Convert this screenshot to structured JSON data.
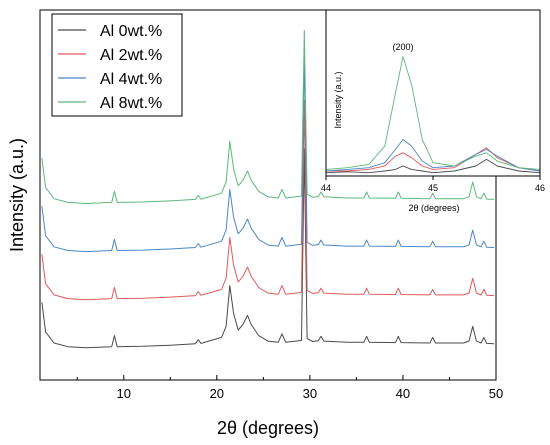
{
  "chart_data": [
    {
      "type": "line",
      "xlabel": "2θ (degrees)",
      "ylabel": "Intensity (a.u.)",
      "xlim": [
        1,
        50
      ],
      "ylim": [
        0,
        100
      ],
      "xticks": [
        10,
        20,
        30,
        40,
        50
      ],
      "grid": false,
      "legend_position": "top-left",
      "series": [
        {
          "name": "Al 0wt.%",
          "color": "#4a4a4a",
          "baseline": 9,
          "x": [
            1.2,
            1.6,
            2.5,
            4,
            6,
            8.7,
            9,
            9.3,
            12,
            15,
            17.7,
            18,
            18.3,
            20.5,
            21.0,
            21.4,
            21.8,
            22.3,
            22.8,
            23.3,
            23.7,
            24.1,
            24.5,
            25.5,
            26.6,
            27.0,
            27.4,
            28.5,
            29.1,
            29.4,
            29.7,
            30.3,
            30.9,
            31.2,
            31.5,
            34,
            35.8,
            36.1,
            36.4,
            39.2,
            39.5,
            39.8,
            42.9,
            43.2,
            43.5,
            46.5,
            47.1,
            47.5,
            47.9,
            48.4,
            48.7,
            49.0,
            49.8
          ],
          "y": [
            21,
            13,
            10,
            9,
            8.7,
            9,
            12,
            9,
            9.1,
            9.4,
            9.8,
            10.9,
            9.9,
            11.5,
            14.5,
            25.5,
            18,
            13.5,
            15,
            17.5,
            15,
            13.5,
            12,
            10.5,
            10.2,
            12.5,
            10.2,
            10.5,
            10.7,
            62.5,
            11.2,
            10.4,
            10.6,
            11.8,
            10.5,
            10.2,
            10.2,
            11.8,
            10.2,
            10.1,
            11.8,
            10.1,
            10,
            11.5,
            10,
            10,
            10.5,
            14.5,
            10.5,
            10,
            11.5,
            9.9,
            9.8
          ]
        },
        {
          "name": "Al 2wt.%",
          "color": "#e05a5a",
          "baseline": 22,
          "x": [
            1.2,
            1.6,
            2.5,
            4,
            6,
            8.7,
            9,
            9.3,
            12,
            15,
            17.7,
            18,
            18.3,
            20.5,
            21.0,
            21.4,
            21.8,
            22.3,
            22.8,
            23.3,
            23.7,
            24.1,
            24.5,
            25.5,
            26.6,
            27.0,
            27.4,
            28.5,
            29.1,
            29.4,
            29.7,
            30.3,
            30.9,
            31.2,
            31.5,
            34,
            35.8,
            36.1,
            36.4,
            39.2,
            39.5,
            39.8,
            42.9,
            43.2,
            43.5,
            46.5,
            47.1,
            47.5,
            47.9,
            48.4,
            48.7,
            49.0,
            49.8
          ],
          "y": [
            34,
            26,
            23,
            22,
            21.7,
            22,
            25,
            22,
            22.1,
            22.4,
            22.8,
            23.9,
            22.9,
            24.5,
            27.5,
            38.5,
            31,
            26.5,
            28,
            30.5,
            28,
            26.5,
            25,
            23.5,
            23.2,
            25.5,
            23.2,
            23.5,
            23.7,
            75.5,
            24.2,
            23.4,
            23.6,
            24.8,
            23.5,
            23.2,
            23.2,
            24.8,
            23.2,
            23.1,
            24.8,
            23.1,
            23,
            24.5,
            23,
            23,
            23.5,
            27.5,
            23.5,
            23,
            24.5,
            22.9,
            22.8
          ]
        },
        {
          "name": "Al 4wt.%",
          "color": "#4a86c8",
          "baseline": 35,
          "x": [
            1.2,
            1.6,
            2.5,
            4,
            6,
            8.7,
            9,
            9.3,
            12,
            15,
            17.7,
            18,
            18.3,
            20.5,
            21.0,
            21.4,
            21.8,
            22.3,
            22.8,
            23.3,
            23.7,
            24.1,
            24.5,
            25.5,
            26.6,
            27.0,
            27.4,
            28.5,
            29.1,
            29.4,
            29.7,
            30.3,
            30.9,
            31.2,
            31.5,
            34,
            35.8,
            36.1,
            36.4,
            39.2,
            39.5,
            39.8,
            42.9,
            43.2,
            43.5,
            46.5,
            47.1,
            47.5,
            47.9,
            48.4,
            48.7,
            49.0,
            49.8
          ],
          "y": [
            47,
            39,
            36,
            35,
            34.7,
            35,
            38,
            35,
            35.1,
            35.4,
            35.8,
            36.9,
            35.9,
            37.5,
            40.5,
            51.5,
            44,
            39.5,
            41,
            43.5,
            41,
            39.5,
            38,
            36.5,
            36.2,
            38.5,
            36.2,
            36.5,
            36.7,
            88.5,
            37.2,
            36.4,
            36.6,
            37.8,
            36.5,
            36.2,
            36.2,
            37.8,
            36.2,
            36.1,
            37.8,
            36.1,
            36,
            37.5,
            36,
            36,
            36.5,
            40.5,
            36.5,
            36,
            37.5,
            35.9,
            35.8
          ]
        },
        {
          "name": "Al 8wt.%",
          "color": "#5cb87a",
          "baseline": 48,
          "x": [
            1.2,
            1.6,
            2.5,
            4,
            6,
            8.7,
            9,
            9.3,
            12,
            15,
            17.7,
            18,
            18.3,
            20.5,
            21.0,
            21.4,
            21.8,
            22.3,
            22.8,
            23.3,
            23.7,
            24.1,
            24.5,
            25.5,
            26.6,
            27.0,
            27.4,
            28.5,
            29.1,
            29.4,
            29.7,
            30.3,
            30.9,
            31.2,
            31.5,
            34,
            35.8,
            36.1,
            36.4,
            39.2,
            39.5,
            39.8,
            42.9,
            43.2,
            43.5,
            46.5,
            47.1,
            47.5,
            47.9,
            48.4,
            48.7,
            49.0,
            49.8
          ],
          "y": [
            60,
            52,
            49,
            48,
            47.7,
            48,
            51,
            48,
            48.1,
            48.4,
            48.8,
            49.9,
            48.9,
            50.5,
            53.5,
            64.5,
            57,
            52.5,
            54,
            56.5,
            54,
            52.5,
            51,
            49.5,
            49.2,
            51.5,
            49.2,
            49.5,
            49.7,
            94.5,
            50.2,
            49.4,
            49.6,
            50.8,
            49.5,
            49.2,
            49.2,
            50.8,
            49.2,
            49.1,
            50.8,
            49.1,
            49,
            50.5,
            49,
            49,
            49.5,
            53.5,
            49.5,
            49,
            50.5,
            48.9,
            48.8
          ]
        }
      ]
    },
    {
      "type": "line",
      "inset": true,
      "xlabel": "2θ (degrees)",
      "ylabel": "Intensity (a.u.)",
      "xlim": [
        44,
        46
      ],
      "ylim": [
        0,
        100
      ],
      "xticks": [
        44,
        45,
        46
      ],
      "annotations": [
        {
          "text": "(200)",
          "x": 44.72,
          "y": 76
        }
      ],
      "series": [
        {
          "name": "Al 0wt.%",
          "color": "#4a4a4a",
          "x": [
            44,
            44.2,
            44.4,
            44.55,
            44.65,
            44.72,
            44.8,
            44.9,
            45.0,
            45.2,
            45.4,
            45.5,
            45.6,
            45.8,
            46
          ],
          "y": [
            2,
            2.5,
            2,
            3,
            4,
            6,
            4,
            3,
            2,
            3,
            6,
            10,
            6,
            3,
            2
          ]
        },
        {
          "name": "Al 2wt.%",
          "color": "#e05a5a",
          "x": [
            44,
            44.2,
            44.4,
            44.55,
            44.65,
            44.72,
            44.8,
            44.9,
            45.0,
            45.2,
            45.4,
            45.5,
            45.6,
            45.8,
            46
          ],
          "y": [
            3,
            3,
            4,
            6,
            12,
            14,
            11,
            6,
            4,
            5,
            13,
            17,
            11,
            5,
            3
          ]
        },
        {
          "name": "Al 4wt.%",
          "color": "#4a86c8",
          "x": [
            44,
            44.2,
            44.4,
            44.55,
            44.65,
            44.72,
            44.8,
            44.9,
            45.0,
            45.2,
            45.4,
            45.5,
            45.6,
            45.8,
            46
          ],
          "y": [
            3,
            4,
            5,
            8,
            16,
            22,
            18,
            9,
            5,
            6,
            13,
            16,
            12,
            5,
            3
          ]
        },
        {
          "name": "Al 8wt.%",
          "color": "#5cb87a",
          "x": [
            44,
            44.2,
            44.4,
            44.55,
            44.65,
            44.72,
            44.8,
            44.9,
            45.0,
            45.2,
            45.4,
            45.5,
            45.6,
            45.8,
            46
          ],
          "y": [
            4,
            5,
            7,
            18,
            50,
            72,
            55,
            22,
            8,
            6,
            12,
            14,
            9,
            5,
            4
          ]
        }
      ]
    }
  ]
}
